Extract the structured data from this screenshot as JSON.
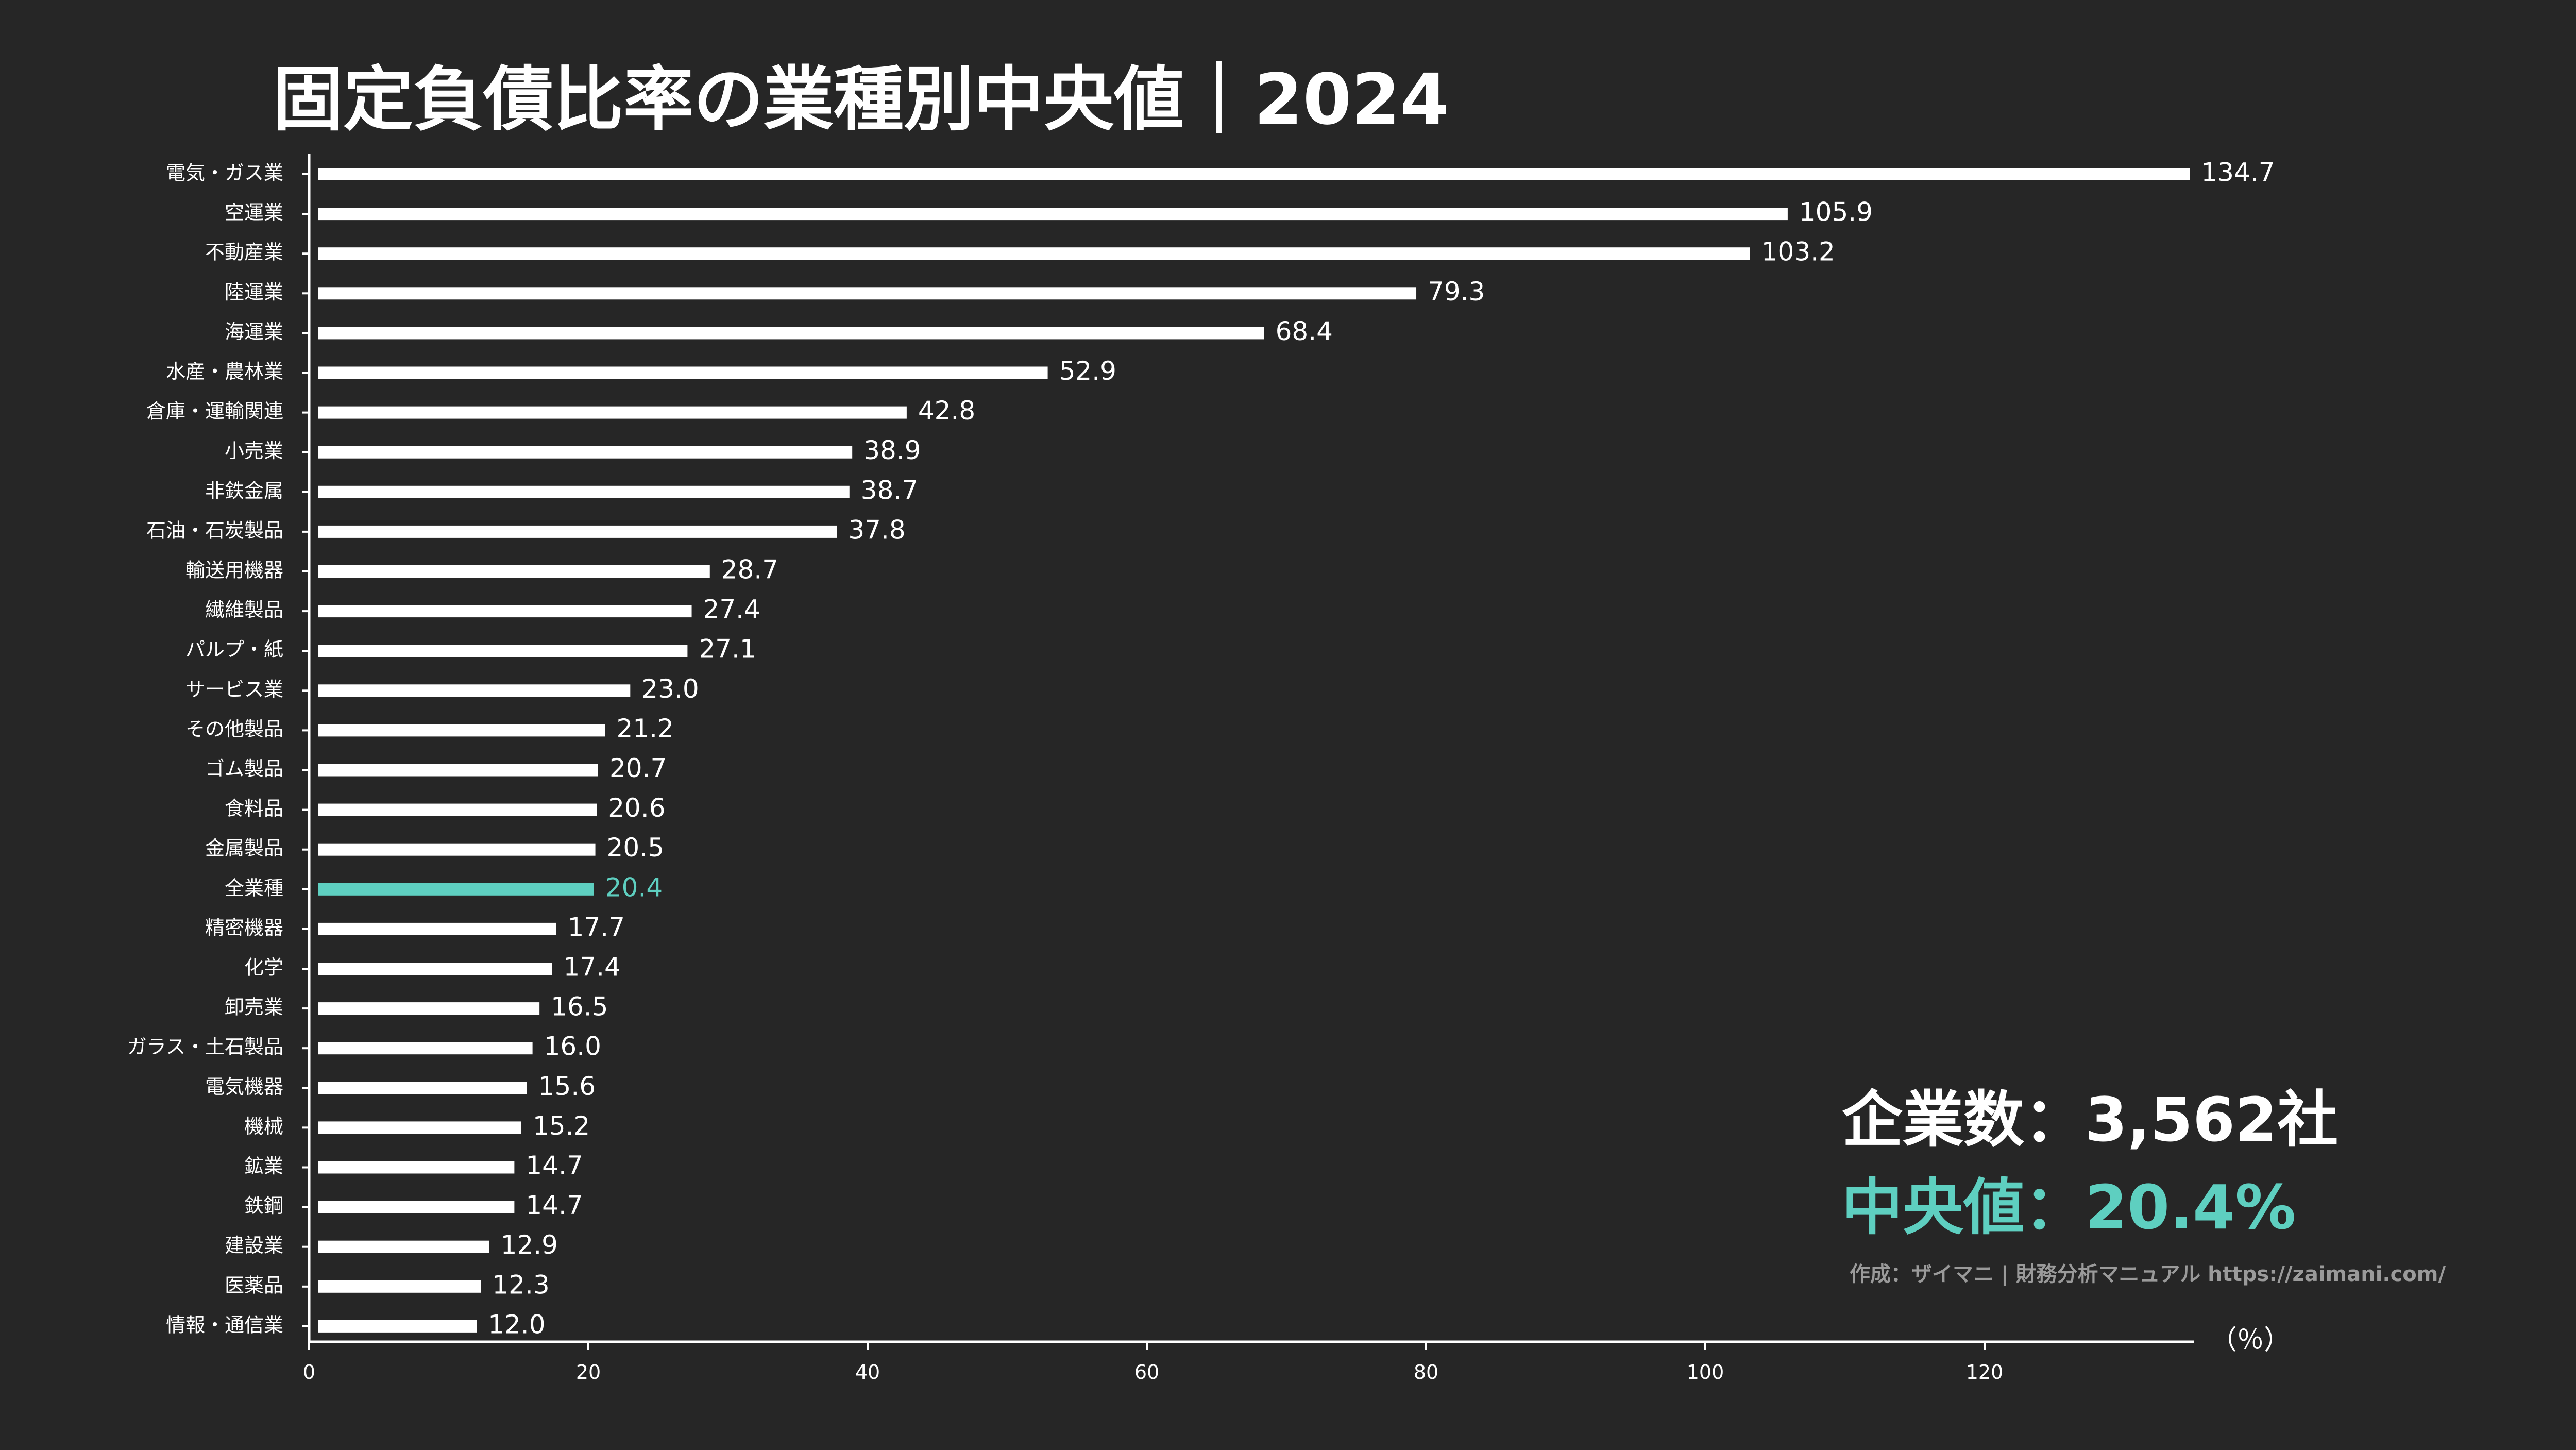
{
  "title": "固定負債比率の業種別中央値｜2024",
  "info": {
    "count_text": "企業数：3,562社",
    "median_text": "中央値：20.4%",
    "credit": "作成：ザイマニ | 財務分析マニュアル https://zaimani.com/"
  },
  "colors": {
    "background": "#262626",
    "bar": "#ffffff",
    "highlight": "#5ecfc0",
    "axis": "#ffffff",
    "credit": "#9a9a9a"
  },
  "chart_data": {
    "type": "bar",
    "orientation": "horizontal",
    "title": "固定負債比率の業種別中央値｜2024",
    "xlabel": "（％）",
    "xlim": [
      0,
      135
    ],
    "xticks": [
      0,
      20,
      40,
      60,
      80,
      100,
      120
    ],
    "grid": false,
    "highlight_category": "全業種",
    "categories": [
      "電気・ガス業",
      "空運業",
      "不動産業",
      "陸運業",
      "海運業",
      "水産・農林業",
      "倉庫・運輸関連",
      "小売業",
      "非鉄金属",
      "石油・石炭製品",
      "輸送用機器",
      "繊維製品",
      "パルプ・紙",
      "サービス業",
      "その他製品",
      "ゴム製品",
      "食料品",
      "金属製品",
      "全業種",
      "精密機器",
      "化学",
      "卸売業",
      "ガラス・土石製品",
      "電気機器",
      "機械",
      "鉱業",
      "鉄鋼",
      "建設業",
      "医薬品",
      "情報・通信業"
    ],
    "values": [
      134.7,
      105.9,
      103.2,
      79.3,
      68.4,
      52.9,
      42.8,
      38.9,
      38.7,
      37.8,
      28.7,
      27.4,
      27.1,
      23.0,
      21.2,
      20.7,
      20.6,
      20.5,
      20.4,
      17.7,
      17.4,
      16.5,
      16.0,
      15.6,
      15.2,
      14.7,
      14.7,
      12.9,
      12.3,
      12.0
    ],
    "value_labels": [
      "134.7",
      "105.9",
      "103.2",
      "79.3",
      "68.4",
      "52.9",
      "42.8",
      "38.9",
      "38.7",
      "37.8",
      "28.7",
      "27.4",
      "27.1",
      "23.0",
      "21.2",
      "20.7",
      "20.6",
      "20.5",
      "20.4",
      "17.7",
      "17.4",
      "16.5",
      "16.0",
      "15.6",
      "15.2",
      "14.7",
      "14.7",
      "12.9",
      "12.3",
      "12.0"
    ]
  }
}
